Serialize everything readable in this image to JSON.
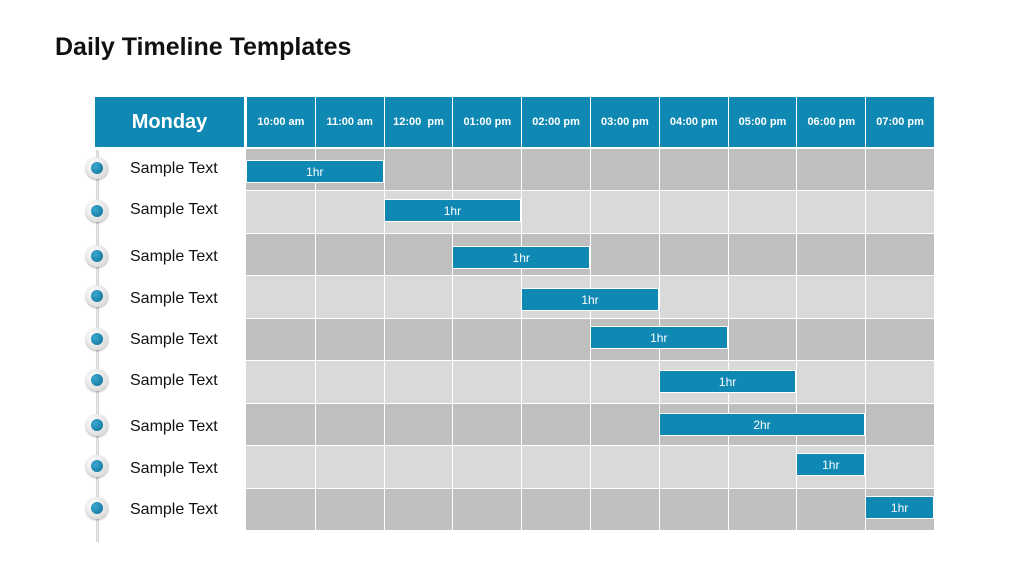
{
  "title": "Daily Timeline Templates",
  "day": "Monday",
  "times": [
    "10:00 am",
    "11:00 am",
    "12:00  pm",
    "01:00 pm",
    "02:00 pm",
    "03:00 pm",
    "04:00 pm",
    "05:00 pm",
    "06:00 pm",
    "07:00 pm"
  ],
  "rows": [
    {
      "label": "Sample Text",
      "bar": {
        "start": 0,
        "span": 2,
        "text": "1hr"
      }
    },
    {
      "label": "Sample Text",
      "bar": {
        "start": 2,
        "span": 2,
        "text": "1hr"
      }
    },
    {
      "label": "Sample Text",
      "bar": {
        "start": 3,
        "span": 2,
        "text": "1hr"
      }
    },
    {
      "label": "Sample Text",
      "bar": {
        "start": 4,
        "span": 2,
        "text": "1hr"
      }
    },
    {
      "label": "Sample Text",
      "bar": {
        "start": 5,
        "span": 2,
        "text": "1hr"
      }
    },
    {
      "label": "Sample Text",
      "bar": {
        "start": 6,
        "span": 2,
        "text": "1hr"
      }
    },
    {
      "label": "Sample Text",
      "bar": {
        "start": 6,
        "span": 3,
        "text": "2hr"
      }
    },
    {
      "label": "Sample Text",
      "bar": {
        "start": 8,
        "span": 1,
        "text": "1hr"
      }
    },
    {
      "label": "Sample Text",
      "bar": {
        "start": 9,
        "span": 1,
        "text": "1hr"
      }
    }
  ],
  "colors": {
    "accent": "#0f88b4",
    "row_dark": "#bfbfbf",
    "row_light": "#d9d9d9"
  }
}
